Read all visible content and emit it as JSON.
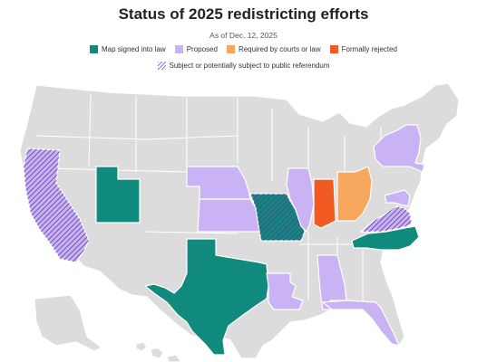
{
  "header": {
    "title": "Status of 2025 redistricting efforts",
    "subtitle": "As of Dec. 12, 2025"
  },
  "legend": {
    "items": [
      {
        "label": "Map signed into law",
        "color": "#0f8a7d",
        "icon": "teal-square"
      },
      {
        "label": "Proposed",
        "color": "#c9b3f5",
        "icon": "lavender-square"
      },
      {
        "label": "Required by courts or law",
        "color": "#f8a85e",
        "icon": "orange-square"
      },
      {
        "label": "Formally rejected",
        "color": "#f25a24",
        "icon": "red-orange-square"
      }
    ],
    "referendum": {
      "label": "Subject or potentially subject to public referendum",
      "icon": "hatched-square"
    }
  },
  "colors": {
    "base": "#dcdcdc",
    "signed": "#0f8a7d",
    "proposed": "#c9b3f5",
    "required": "#f8a85e",
    "rejected": "#f25a24",
    "hatch": "#5a3a9c",
    "border": "#ffffff"
  },
  "map": {
    "states": [
      {
        "abbr": "CA",
        "status": "proposed",
        "referendum": true
      },
      {
        "abbr": "UT",
        "status": "signed",
        "referendum": false
      },
      {
        "abbr": "TX",
        "status": "signed",
        "referendum": false
      },
      {
        "abbr": "MO",
        "status": "signed",
        "referendum": true
      },
      {
        "abbr": "NC",
        "status": "signed",
        "referendum": false
      },
      {
        "abbr": "NE",
        "status": "proposed",
        "referendum": false
      },
      {
        "abbr": "KS",
        "status": "proposed",
        "referendum": false
      },
      {
        "abbr": "IL",
        "status": "proposed",
        "referendum": false
      },
      {
        "abbr": "LA",
        "status": "proposed",
        "referendum": false
      },
      {
        "abbr": "AL",
        "status": "proposed",
        "referendum": false
      },
      {
        "abbr": "FL",
        "status": "proposed",
        "referendum": false
      },
      {
        "abbr": "NY",
        "status": "proposed",
        "referendum": false
      },
      {
        "abbr": "MD",
        "status": "proposed",
        "referendum": false
      },
      {
        "abbr": "VA",
        "status": "proposed",
        "referendum": true
      },
      {
        "abbr": "OH",
        "status": "required",
        "referendum": false
      },
      {
        "abbr": "IN",
        "status": "rejected",
        "referendum": false
      }
    ]
  }
}
